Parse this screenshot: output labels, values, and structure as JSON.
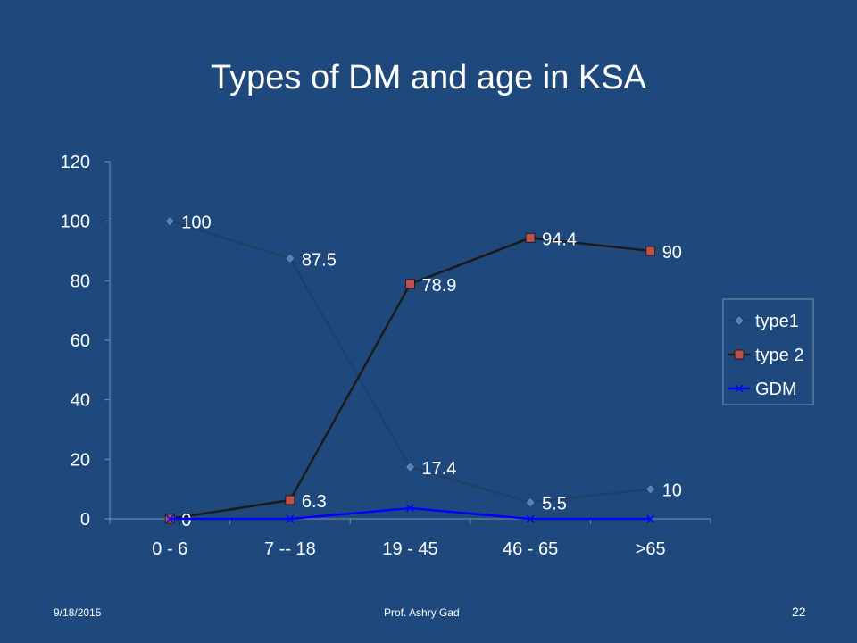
{
  "slide": {
    "title": "Types of DM and age in KSA",
    "footer_date": "9/18/2015",
    "footer_author": "Prof. Ashry Gad",
    "page_number": "22"
  },
  "chart_data": {
    "type": "line",
    "title": "",
    "xlabel": "",
    "ylabel": "",
    "categories": [
      "0 - 6",
      "7 -- 18",
      "19 - 45",
      "46 - 65",
      ">65"
    ],
    "ylim": [
      0,
      120
    ],
    "yticks": [
      "0",
      "20",
      "40",
      "60",
      "80",
      "100",
      "120"
    ],
    "grid": false,
    "legend_position": "right",
    "series": [
      {
        "name": "type1",
        "values": [
          100,
          87.5,
          17.4,
          5.5,
          10
        ],
        "labels": [
          "100",
          "87.5",
          "17.4",
          "5.5",
          "10"
        ],
        "color": "#1f3f66",
        "marker": "diamond",
        "marker_color": "#4f81bd"
      },
      {
        "name": "type 2",
        "values": [
          0,
          6.3,
          78.9,
          94.4,
          90
        ],
        "labels": [
          "0",
          "6.3",
          "78.9",
          "94.4",
          "90"
        ],
        "color": "#1a1a1a",
        "marker": "square",
        "marker_color": "#c0504d"
      },
      {
        "name": "GDM",
        "values": [
          0,
          0,
          3.6,
          0,
          0
        ],
        "labels": [],
        "color": "#0000ff",
        "marker": "x",
        "marker_color": "#0000ff"
      }
    ]
  }
}
